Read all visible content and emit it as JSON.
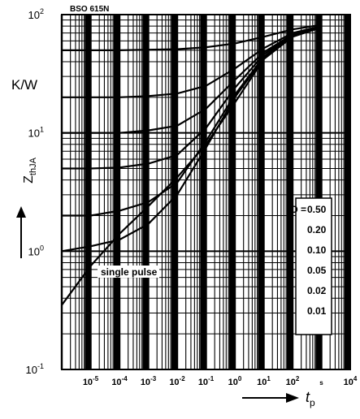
{
  "chart_data": {
    "type": "line",
    "title": "BSO 615N",
    "xlabel": "t",
    "xlabel_sub": "p",
    "ylabel": "Z",
    "ylabel_sub": "thJA",
    "yunit": "K/W",
    "x_scale": "log",
    "y_scale": "log",
    "xlim": [
      1e-06,
      10000
    ],
    "ylim": [
      0.1,
      100
    ],
    "grid": true,
    "legend_title": "D =",
    "legend_placement": "right",
    "x_ticks": [
      {
        "base": "10",
        "exp": "-5",
        "value": 1e-05
      },
      {
        "base": "10",
        "exp": "-4",
        "value": 0.0001
      },
      {
        "base": "10",
        "exp": "-3",
        "value": 0.001
      },
      {
        "base": "10",
        "exp": "-2",
        "value": 0.01
      },
      {
        "base": "10",
        "exp": "-1",
        "value": 0.1
      },
      {
        "base": "10",
        "exp": "0",
        "value": 1
      },
      {
        "base": "10",
        "exp": "1",
        "value": 10
      },
      {
        "base": "10",
        "exp": "2",
        "value": 100
      },
      {
        "base": "",
        "exp": "s",
        "value": 1000
      },
      {
        "base": "10",
        "exp": "4",
        "value": 10000
      }
    ],
    "y_ticks": [
      {
        "base": "10",
        "exp": "2",
        "value": 100
      },
      {
        "base": "10",
        "exp": "1",
        "value": 10
      },
      {
        "base": "10",
        "exp": "0",
        "value": 1
      },
      {
        "base": "10",
        "exp": "-1",
        "value": 0.1
      }
    ],
    "series": [
      {
        "name": "0.50",
        "x": [
          1e-06,
          1e-05,
          0.0001,
          0.001,
          0.01,
          0.1,
          1,
          10,
          100,
          1000
        ],
        "y": [
          50,
          50,
          50,
          50.5,
          51,
          53,
          57,
          65,
          75,
          82
        ]
      },
      {
        "name": "0.20",
        "x": [
          1e-06,
          1e-05,
          0.0001,
          0.001,
          0.01,
          0.1,
          1,
          10,
          100,
          1000
        ],
        "y": [
          20,
          20,
          20,
          20.5,
          21.5,
          25,
          35,
          52,
          70,
          80
        ]
      },
      {
        "name": "0.10",
        "x": [
          1e-06,
          1e-05,
          0.0001,
          0.001,
          0.01,
          0.1,
          1,
          10,
          100,
          1000
        ],
        "y": [
          10,
          10,
          10,
          10.5,
          11.5,
          16,
          28,
          48,
          68,
          79
        ]
      },
      {
        "name": "0.05",
        "x": [
          1e-06,
          1e-05,
          0.0001,
          0.001,
          0.01,
          0.1,
          1,
          10,
          100,
          1000
        ],
        "y": [
          5,
          5,
          5.1,
          5.5,
          6.5,
          11,
          24,
          46,
          67,
          79
        ]
      },
      {
        "name": "0.02",
        "x": [
          1e-06,
          1e-05,
          0.0001,
          0.001,
          0.01,
          0.1,
          1,
          10,
          100,
          1000
        ],
        "y": [
          2,
          2,
          2.2,
          2.6,
          3.8,
          8.5,
          21,
          44,
          66,
          78
        ]
      },
      {
        "name": "0.01",
        "x": [
          1e-06,
          1e-05,
          0.0001,
          0.001,
          0.01,
          0.1,
          1,
          10,
          100,
          1000
        ],
        "y": [
          1,
          1.1,
          1.25,
          1.7,
          3,
          7.5,
          20,
          43,
          66,
          78
        ]
      },
      {
        "name": "single pulse",
        "x": [
          1e-06,
          1e-05,
          0.0001,
          0.001,
          0.01,
          0.1,
          1,
          10,
          100,
          1000
        ],
        "y": [
          0.35,
          0.75,
          1.4,
          2.4,
          4.2,
          8,
          18,
          42,
          65,
          78
        ]
      }
    ]
  }
}
